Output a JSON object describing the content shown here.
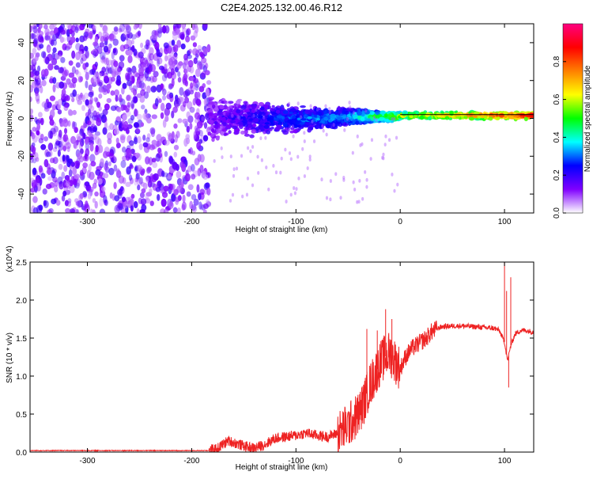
{
  "figure_title": "C2E4.2025.132.00.46.R12",
  "chart_data": [
    {
      "type": "heatmap",
      "id": "spectrogram",
      "xlabel": "Height of straight line (km)",
      "ylabel": "Frequency (Hz)",
      "xlim": [
        -355,
        128
      ],
      "ylim": [
        -50,
        50
      ],
      "x_ticks": [
        -300,
        -200,
        -100,
        0,
        100
      ],
      "y_ticks": [
        -40,
        -20,
        0,
        20,
        40
      ],
      "colorbar": {
        "label": "Normalized spectral amplitude",
        "range": [
          0,
          1
        ],
        "ticks": [
          "0.0",
          "0.2",
          "0.4",
          "0.6",
          "0.8"
        ],
        "tick_values": [
          0.0,
          0.2,
          0.4,
          0.6,
          0.8
        ],
        "colors": [
          "#ffffff",
          "#8000ff",
          "#0000ff",
          "#00ffff",
          "#00ff00",
          "#ffff00",
          "#ff8000",
          "#ff0000",
          "#ff0080"
        ]
      },
      "regions": [
        {
          "name": "noise",
          "x": [
            -355,
            -183
          ],
          "freq": [
            -50,
            50
          ],
          "amplitude": [
            0.05,
            0.2
          ]
        },
        {
          "name": "signal-broad",
          "x": [
            -183,
            -60
          ],
          "freq_center": 0,
          "freq_halfwidth": [
            12,
            5
          ],
          "amplitude": [
            0.15,
            0.35
          ]
        },
        {
          "name": "signal-narrowing",
          "x": [
            -60,
            0
          ],
          "freq_center": 1,
          "freq_halfwidth": [
            5,
            2
          ],
          "amplitude": [
            0.3,
            0.6
          ]
        },
        {
          "name": "signal-line",
          "x": [
            0,
            128
          ],
          "freq_center": 1.5,
          "freq_halfwidth": [
            2,
            2
          ],
          "amplitude": [
            0.6,
            0.9
          ]
        }
      ],
      "reference_line": {
        "freq": 2
      }
    },
    {
      "type": "line",
      "id": "snr",
      "xlabel": "Height of straight line (km)",
      "ylabel": "SNR (10 * v/v)",
      "y_multiplier": "(x10^4)",
      "xlim": [
        -355,
        128
      ],
      "ylim": [
        0,
        2.5
      ],
      "x_ticks": [
        -300,
        -200,
        -100,
        0,
        100
      ],
      "y_ticks": [
        "0.0",
        "0.5",
        "1.0",
        "1.5",
        "2.0",
        "2.5"
      ],
      "y_tick_values": [
        0,
        0.5,
        1.0,
        1.5,
        2.0,
        2.5
      ],
      "color": "#ee2222",
      "series": [
        {
          "x": [
            -355,
            -300,
            -250,
            -200,
            -183,
            -175,
            -165,
            -150,
            -140,
            -130,
            -120,
            -110,
            -100,
            -90,
            -80,
            -70,
            -60,
            -50,
            -40,
            -35,
            -30,
            -25,
            -20,
            -15,
            -10,
            -5,
            0,
            5,
            10,
            20,
            25,
            30,
            35,
            40,
            50,
            60,
            70,
            80,
            90,
            95,
            100,
            103,
            106,
            110,
            115,
            120,
            128
          ],
          "y": [
            0.02,
            0.02,
            0.02,
            0.02,
            0.02,
            0.05,
            0.15,
            0.08,
            0.05,
            0.1,
            0.18,
            0.2,
            0.22,
            0.25,
            0.22,
            0.2,
            0.25,
            0.35,
            0.5,
            0.65,
            0.85,
            1.0,
            1.15,
            1.25,
            1.3,
            1.2,
            1.1,
            1.25,
            1.35,
            1.45,
            1.5,
            1.58,
            1.62,
            1.65,
            1.66,
            1.66,
            1.65,
            1.64,
            1.63,
            1.6,
            1.45,
            1.2,
            1.4,
            1.55,
            1.6,
            1.6,
            1.58
          ]
        }
      ],
      "spikes": [
        {
          "x": -32,
          "y": 1.62
        },
        {
          "x": -22,
          "y": 1.6
        },
        {
          "x": -14,
          "y": 1.88
        },
        {
          "x": -8,
          "y": 1.75
        },
        {
          "x": 100,
          "y": 2.5
        },
        {
          "x": 102,
          "y": 2.12
        },
        {
          "x": 104,
          "y": 0.85
        },
        {
          "x": 106,
          "y": 2.3
        }
      ]
    }
  ]
}
